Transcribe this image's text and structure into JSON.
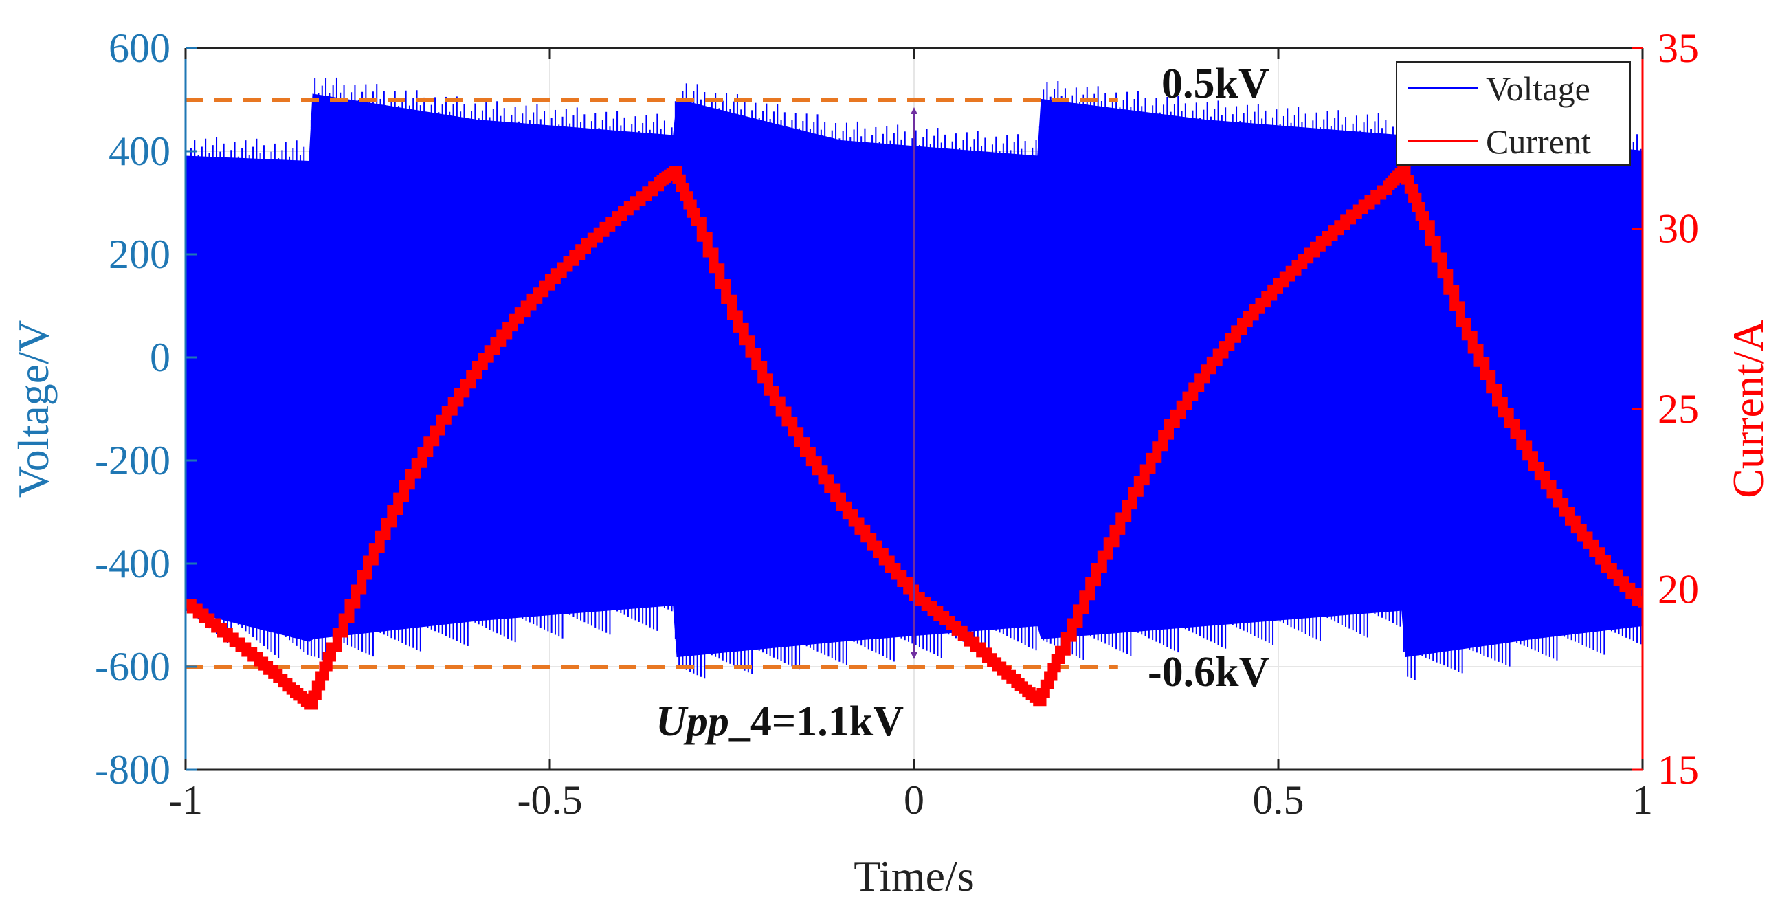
{
  "chart_data": {
    "type": "line",
    "title": "",
    "xlabel": "Time/s",
    "ylabel_left": "Voltage/V",
    "ylabel_right": "Current/A",
    "xlim": [
      -1,
      1
    ],
    "ylim_left": [
      -800,
      600
    ],
    "ylim_right": [
      15,
      35
    ],
    "x_ticks": [
      -1,
      -0.5,
      0,
      0.5,
      1
    ],
    "x_tick_labels": [
      "-1",
      "-0.5",
      "0",
      "0.5",
      "1"
    ],
    "y_left_ticks": [
      -800,
      -600,
      -400,
      -200,
      0,
      200,
      400,
      600
    ],
    "y_left_tick_labels": [
      "-800",
      "-600",
      "-400",
      "-200",
      "0",
      "200",
      "400",
      "600"
    ],
    "y_right_ticks": [
      15,
      20,
      25,
      30,
      35
    ],
    "y_right_tick_labels": [
      "15",
      "20",
      "25",
      "30",
      "35"
    ],
    "grid": true,
    "legend_position": "top-right",
    "series": [
      {
        "name": "Voltage",
        "axis": "left",
        "color": "#0000ff",
        "style": "dense-oscillation-envelope",
        "upper_envelope": [
          {
            "x": -1.0,
            "y": 390
          },
          {
            "x": -0.83,
            "y": 380
          },
          {
            "x": -0.825,
            "y": 510
          },
          {
            "x": -0.6,
            "y": 460
          },
          {
            "x": -0.33,
            "y": 430
          },
          {
            "x": -0.325,
            "y": 500
          },
          {
            "x": -0.1,
            "y": 420
          },
          {
            "x": 0.17,
            "y": 390
          },
          {
            "x": 0.175,
            "y": 500
          },
          {
            "x": 0.4,
            "y": 460
          },
          {
            "x": 0.67,
            "y": 430
          },
          {
            "x": 0.675,
            "y": 500
          },
          {
            "x": 0.85,
            "y": 420
          },
          {
            "x": 1.0,
            "y": 400
          }
        ],
        "lower_envelope": [
          {
            "x": -1.0,
            "y": -490
          },
          {
            "x": -0.83,
            "y": -550
          },
          {
            "x": -0.825,
            "y": -545
          },
          {
            "x": -0.6,
            "y": -510
          },
          {
            "x": -0.33,
            "y": -480
          },
          {
            "x": -0.325,
            "y": -580
          },
          {
            "x": -0.1,
            "y": -550
          },
          {
            "x": 0.17,
            "y": -520
          },
          {
            "x": 0.175,
            "y": -545
          },
          {
            "x": 0.4,
            "y": -520
          },
          {
            "x": 0.67,
            "y": -490
          },
          {
            "x": 0.675,
            "y": -580
          },
          {
            "x": 0.85,
            "y": -545
          },
          {
            "x": 1.0,
            "y": -520
          }
        ]
      },
      {
        "name": "Current",
        "axis": "right",
        "color": "#ff0000",
        "x": [
          -1.0,
          -0.95,
          -0.9,
          -0.86,
          -0.83,
          -0.8,
          -0.75,
          -0.7,
          -0.65,
          -0.6,
          -0.55,
          -0.5,
          -0.45,
          -0.4,
          -0.35,
          -0.33,
          -0.3,
          -0.25,
          -0.2,
          -0.15,
          -0.1,
          -0.05,
          0.0,
          0.05,
          0.1,
          0.14,
          0.17,
          0.2,
          0.25,
          0.3,
          0.35,
          0.4,
          0.45,
          0.5,
          0.55,
          0.6,
          0.65,
          0.67,
          0.7,
          0.75,
          0.8,
          0.85,
          0.9,
          0.95,
          1.0
        ],
        "y": [
          19.6,
          18.8,
          18.0,
          17.3,
          16.8,
          18.4,
          20.8,
          22.9,
          24.7,
          26.2,
          27.5,
          28.6,
          29.6,
          30.5,
          31.3,
          31.6,
          30.2,
          27.6,
          25.5,
          23.8,
          22.3,
          21.0,
          19.8,
          19.0,
          18.1,
          17.4,
          16.9,
          18.3,
          20.6,
          22.7,
          24.6,
          26.1,
          27.4,
          28.5,
          29.5,
          30.4,
          31.2,
          31.6,
          30.1,
          27.4,
          25.2,
          23.4,
          21.9,
          20.6,
          19.5
        ]
      }
    ],
    "reference_lines": [
      {
        "axis": "left",
        "y": 500,
        "label": "0.5kV",
        "color": "#e87722",
        "x_start": -1.0,
        "x_end": 0.28
      },
      {
        "axis": "left",
        "y": -600,
        "label": "-0.6kV",
        "color": "#e87722",
        "x_start": -1.0,
        "x_end": 0.28
      }
    ],
    "annotation": {
      "type": "double-arrow",
      "x": 0.0,
      "y_from": -600,
      "y_to": 500,
      "color": "#7030a0",
      "label_italic": "Upp",
      "label_rest": "_4=1.1kV"
    },
    "colors": {
      "left_axis": "#1f77b4",
      "right_axis": "#ff0000",
      "x_axis": "#222222",
      "grid": "#e6e6e6",
      "reference": "#e87722",
      "arrow": "#7030a0"
    }
  }
}
